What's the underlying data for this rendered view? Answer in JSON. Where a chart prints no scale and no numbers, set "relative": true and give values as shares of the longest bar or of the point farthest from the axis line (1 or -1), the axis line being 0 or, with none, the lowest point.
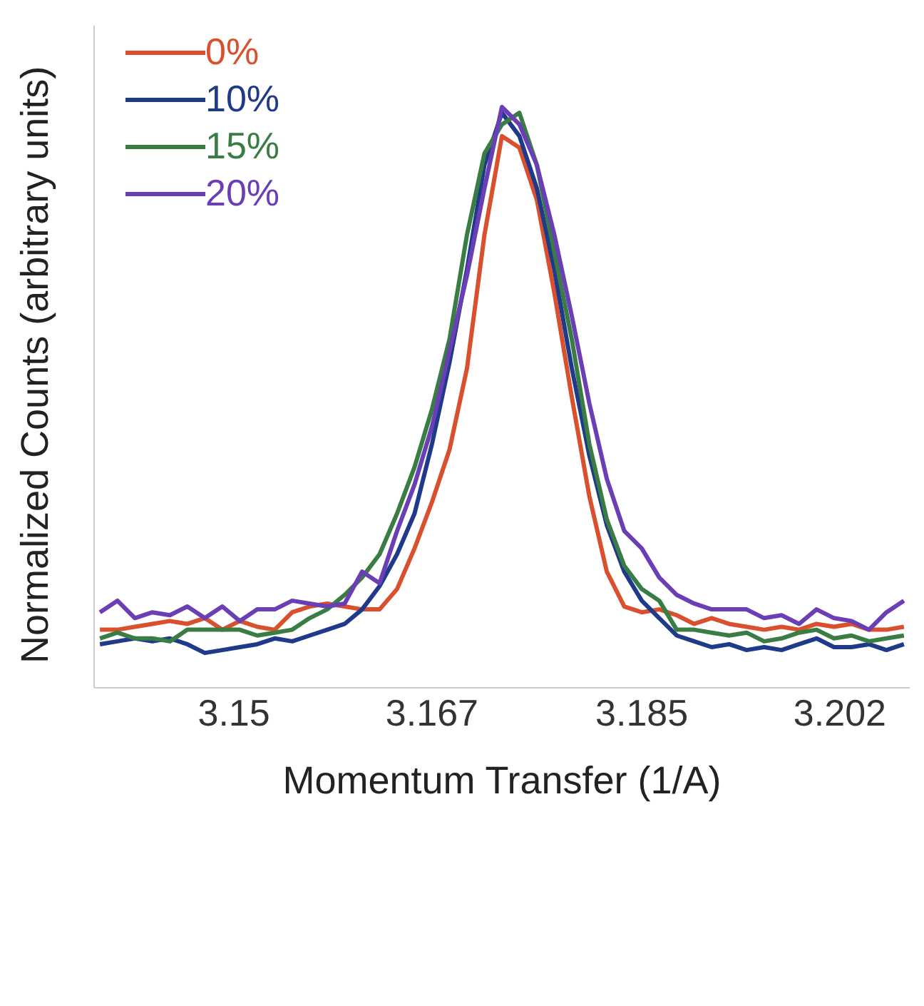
{
  "chart_data": {
    "type": "line",
    "relative": true,
    "xlabel": "Momentum Transfer (1/A)",
    "ylabel": "Normalized Counts (arbitrary units)",
    "x": [
      3.1385,
      3.14,
      3.1415,
      3.143,
      3.1445,
      3.146,
      3.1475,
      3.149,
      3.1505,
      3.152,
      3.1535,
      3.155,
      3.1565,
      3.158,
      3.1595,
      3.161,
      3.1625,
      3.164,
      3.1655,
      3.167,
      3.1685,
      3.17,
      3.1715,
      3.173,
      3.1745,
      3.176,
      3.1775,
      3.179,
      3.1805,
      3.182,
      3.1835,
      3.185,
      3.1865,
      3.188,
      3.1895,
      3.191,
      3.1925,
      3.194,
      3.1955,
      3.197,
      3.1985,
      3.2,
      3.2015,
      3.203,
      3.2045,
      3.206,
      3.2075
    ],
    "xlim": [
      3.138,
      3.208
    ],
    "xticks": [
      3.15,
      3.167,
      3.185,
      3.202
    ],
    "legend": "top left",
    "marker": "none",
    "line_style": "solid",
    "grid": false,
    "series": [
      {
        "name": "0%",
        "color": "#d9502f",
        "values": [
          0.1,
          0.1,
          0.105,
          0.11,
          0.115,
          0.11,
          0.12,
          0.1,
          0.115,
          0.105,
          0.1,
          0.13,
          0.14,
          0.145,
          0.14,
          0.135,
          0.135,
          0.17,
          0.24,
          0.32,
          0.41,
          0.55,
          0.78,
          0.95,
          0.93,
          0.84,
          0.68,
          0.5,
          0.33,
          0.2,
          0.14,
          0.13,
          0.135,
          0.125,
          0.11,
          0.12,
          0.11,
          0.105,
          0.1,
          0.105,
          0.1,
          0.11,
          0.105,
          0.11,
          0.1,
          0.1,
          0.105
        ]
      },
      {
        "name": "10%",
        "color": "#1f3a8a",
        "values": [
          0.075,
          0.08,
          0.085,
          0.08,
          0.085,
          0.075,
          0.06,
          0.065,
          0.07,
          0.075,
          0.085,
          0.08,
          0.09,
          0.1,
          0.11,
          0.135,
          0.175,
          0.23,
          0.3,
          0.42,
          0.56,
          0.72,
          0.9,
          0.99,
          0.95,
          0.86,
          0.72,
          0.55,
          0.4,
          0.28,
          0.2,
          0.15,
          0.12,
          0.09,
          0.08,
          0.07,
          0.075,
          0.065,
          0.07,
          0.065,
          0.075,
          0.085,
          0.07,
          0.07,
          0.075,
          0.065,
          0.075
        ]
      },
      {
        "name": "15%",
        "color": "#3a7d44",
        "values": [
          0.085,
          0.095,
          0.085,
          0.085,
          0.08,
          0.1,
          0.1,
          0.1,
          0.1,
          0.09,
          0.095,
          0.1,
          0.12,
          0.135,
          0.16,
          0.19,
          0.23,
          0.3,
          0.38,
          0.48,
          0.6,
          0.78,
          0.92,
          0.97,
          0.99,
          0.9,
          0.75,
          0.6,
          0.42,
          0.29,
          0.21,
          0.17,
          0.15,
          0.1,
          0.1,
          0.095,
          0.09,
          0.095,
          0.08,
          0.085,
          0.095,
          0.1,
          0.085,
          0.09,
          0.08,
          0.085,
          0.09
        ]
      },
      {
        "name": "20%",
        "color": "#6a3fb5",
        "values": [
          0.13,
          0.15,
          0.12,
          0.13,
          0.125,
          0.14,
          0.12,
          0.14,
          0.115,
          0.135,
          0.135,
          0.15,
          0.145,
          0.14,
          0.145,
          0.2,
          0.18,
          0.27,
          0.35,
          0.45,
          0.58,
          0.71,
          0.86,
          1.0,
          0.97,
          0.9,
          0.78,
          0.64,
          0.49,
          0.36,
          0.27,
          0.24,
          0.19,
          0.16,
          0.145,
          0.135,
          0.135,
          0.135,
          0.12,
          0.125,
          0.11,
          0.135,
          0.12,
          0.115,
          0.1,
          0.13,
          0.15
        ]
      }
    ]
  }
}
